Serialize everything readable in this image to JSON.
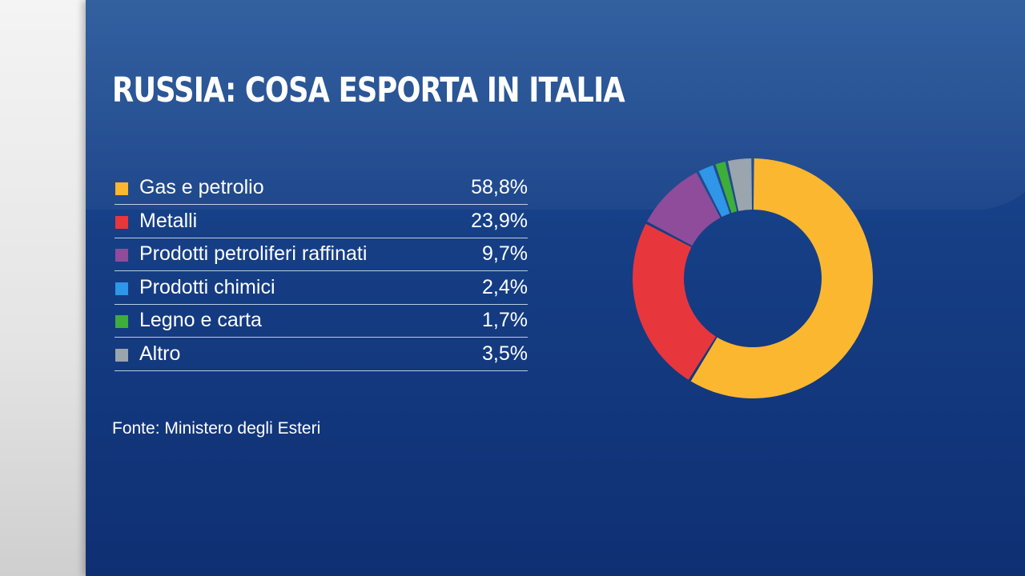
{
  "title": "RUSSIA: COSA ESPORTA IN ITALIA",
  "source": "Fonte: Ministero degli Esteri",
  "colors": {
    "gas": "#fbb730",
    "metalli": "#e8363d",
    "raffinati": "#8e4c9b",
    "chimici": "#2f96e8",
    "legno": "#3dae3a",
    "altro": "#9aa5ae",
    "background": "#163f86"
  },
  "chart_data": {
    "type": "pie",
    "variant": "donut",
    "title": "RUSSIA: COSA ESPORTA IN ITALIA",
    "unit": "%",
    "series": [
      {
        "key": "gas",
        "label": "Gas e petrolio",
        "value": 58.8,
        "display": "58,8%",
        "color": "#fbb730"
      },
      {
        "key": "metalli",
        "label": "Metalli",
        "value": 23.9,
        "display": "23,9%",
        "color": "#e8363d"
      },
      {
        "key": "raffinati",
        "label": "Prodotti petroliferi raffinati",
        "value": 9.7,
        "display": "9,7%",
        "color": "#8e4c9b"
      },
      {
        "key": "chimici",
        "label": "Prodotti chimici",
        "value": 2.4,
        "display": "2,4%",
        "color": "#2f96e8"
      },
      {
        "key": "legno",
        "label": "Legno e carta",
        "value": 1.7,
        "display": "1,7%",
        "color": "#3dae3a"
      },
      {
        "key": "altro",
        "label": "Altro",
        "value": 3.5,
        "display": "3,5%",
        "color": "#9aa5ae"
      }
    ],
    "legend_position": "left"
  }
}
